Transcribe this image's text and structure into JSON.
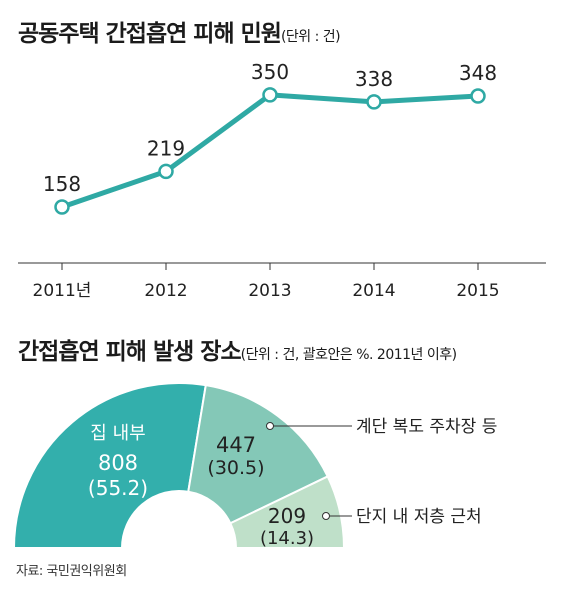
{
  "colors": {
    "line": "#2fa9a4",
    "house_inside": "#33afac",
    "stairs_hallway_parking": "#84c8b7",
    "within_complex_lower_floor": "#bfe0c9",
    "text_dark": "#222222",
    "text_light": "#ffffff"
  },
  "chart_data": [
    {
      "type": "line",
      "title": "공동주택 간접흡연 피해 민원",
      "unit": "(단위 : 건)",
      "x": [
        "2011년",
        "2012",
        "2013",
        "2014",
        "2015"
      ],
      "values": [
        158,
        219,
        350,
        338,
        348
      ],
      "data_labels": [
        "158",
        "219",
        "350",
        "338",
        "348"
      ],
      "grid": false
    },
    {
      "type": "pie",
      "subtype": "half-donut",
      "title": "간접흡연 피해 발생 장소",
      "unit": "(단위 : 건, 괄호안은 %. 2011년 이후)",
      "slices": [
        {
          "name": "집 내부",
          "value": 808,
          "percent": 55.2,
          "value_label": "808",
          "percent_label": "(55.2)"
        },
        {
          "name": "계단 복도 주차장 등",
          "value": 447,
          "percent": 30.5,
          "value_label": "447",
          "percent_label": "(30.5)"
        },
        {
          "name": "단지 내 저층 근처",
          "value": 209,
          "percent": 14.3,
          "value_label": "209",
          "percent_label": "(14.3)"
        }
      ]
    }
  ],
  "source": "자료: 국민권익위원회"
}
